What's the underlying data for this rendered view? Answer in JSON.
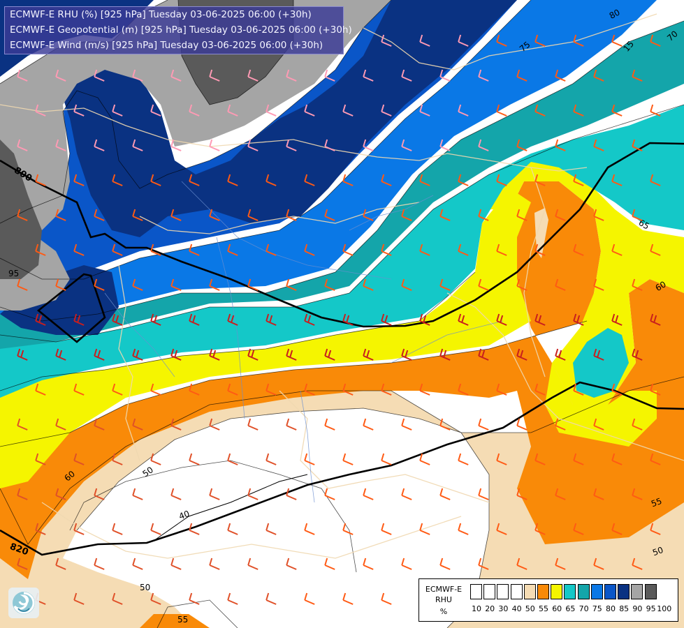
{
  "title": {
    "line1": "ECMWF-E RHU (%) [925 hPa] Tuesday 03-06-2025 06:00 (+30h)",
    "line2": "ECMWF-E Geopotential (m) [925 hPa] Tuesday 03-06-2025 06:00 (+30h)",
    "line3": "ECMWF-E Wind (m/s) [925 hPa] Tuesday 03-06-2025 06:00 (+30h)"
  },
  "legend": {
    "model": "ECMWF-E",
    "variable": "RHU",
    "unit": "%",
    "ticks": [
      "10",
      "20",
      "30",
      "40",
      "50",
      "55",
      "60",
      "65",
      "70",
      "75",
      "80",
      "85",
      "90",
      "95",
      "100"
    ],
    "colors": [
      "#ffffff",
      "#ffffff",
      "#ffffff",
      "#ffffff",
      "#f5dcb4",
      "#f98a08",
      "#f5f500",
      "#14c8c8",
      "#14a5aa",
      "#0a78e6",
      "#0a56c8",
      "#0a3282",
      "#a5a5a5",
      "#5a5a5a"
    ]
  },
  "colors": {
    "rh_50_55": "#f5dcb4",
    "rh_55_60": "#f98a08",
    "rh_60_65": "#f5f500",
    "rh_65_70": "#14c8c8",
    "rh_70_75": "#14a5aa",
    "rh_75_80": "#0a78e6",
    "rh_80_85": "#0a56c8",
    "rh_85_90": "#0a3282",
    "rh_90_95": "#a5a5a5",
    "rh_95_100": "#5a5a5a"
  },
  "geopotential_labels": [
    "800",
    "820"
  ],
  "rhu_contour_labels": [
    "80",
    "75",
    "70",
    "65",
    "60",
    "55",
    "50",
    "40",
    "60",
    "50",
    "55",
    "50",
    "95",
    "15"
  ],
  "logo": "ecmwf-swirl-logo"
}
